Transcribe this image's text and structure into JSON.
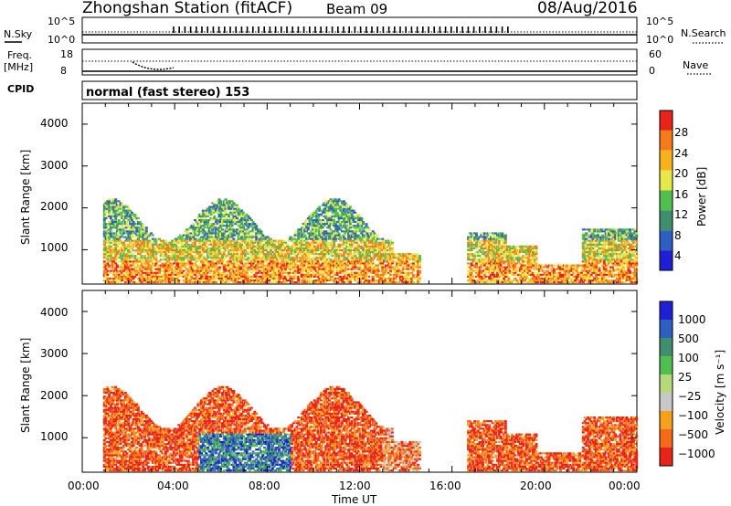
{
  "header": {
    "station": "Zhongshan Station (fitACF)",
    "beam": "Beam 09",
    "date": "08/Aug/2016"
  },
  "panels": {
    "nsky_label": "N.Sky",
    "nsky_ticks": [
      "10^5",
      "10^0"
    ],
    "nsearch_label": "N.Search",
    "nsearch_ticks": [
      "10^5",
      "10^0"
    ],
    "freq_label": "Freq.",
    "freq_unit": "[MHz]",
    "freq_ticks": [
      "18",
      "8"
    ],
    "nave_label": "Nave",
    "nave_ticks": [
      "60",
      "0"
    ],
    "cpid_label": "CPID",
    "cpid_text": "normal (fast stereo) 153"
  },
  "colors": {
    "power": [
      "#1f1fd6",
      "#2f5fbf",
      "#3f8f6f",
      "#4fbf4f",
      "#e6e84a",
      "#f6b21c",
      "#f57a18",
      "#e8241a"
    ],
    "velocity": [
      "#e8241a",
      "#f56a18",
      "#f6a01c",
      "#c8c8c8",
      "#b8d97a",
      "#4fbf4f",
      "#3f8f6f",
      "#2f5fbf",
      "#1f1fd6"
    ]
  },
  "chart_data": [
    {
      "type": "heatmap",
      "ylabel": "Slant Range [km]",
      "colorbar_label": "Power [dB]",
      "colorbar_ticks": [
        "28",
        "24",
        "20",
        "16",
        "12",
        "8",
        "4"
      ],
      "yticks": [
        "4000",
        "3000",
        "2000",
        "1000"
      ],
      "ylim": [
        180,
        4500
      ],
      "xlim_hours": [
        0,
        24
      ]
    },
    {
      "type": "heatmap",
      "ylabel": "Slant Range [km]",
      "colorbar_label": "Velocity [m s⁻¹]",
      "colorbar_ticks": [
        "1000",
        "500",
        "100",
        "25",
        "−25",
        "−100",
        "−500",
        "−1000"
      ],
      "yticks": [
        "4000",
        "3000",
        "2000",
        "1000"
      ],
      "xlabel": "Time UT",
      "xticks": [
        "00:00",
        "04:00",
        "08:00",
        "12:00",
        "16:00",
        "20:00",
        "00:00"
      ],
      "ylim": [
        180,
        4500
      ],
      "xlim_hours": [
        0,
        24
      ]
    }
  ]
}
